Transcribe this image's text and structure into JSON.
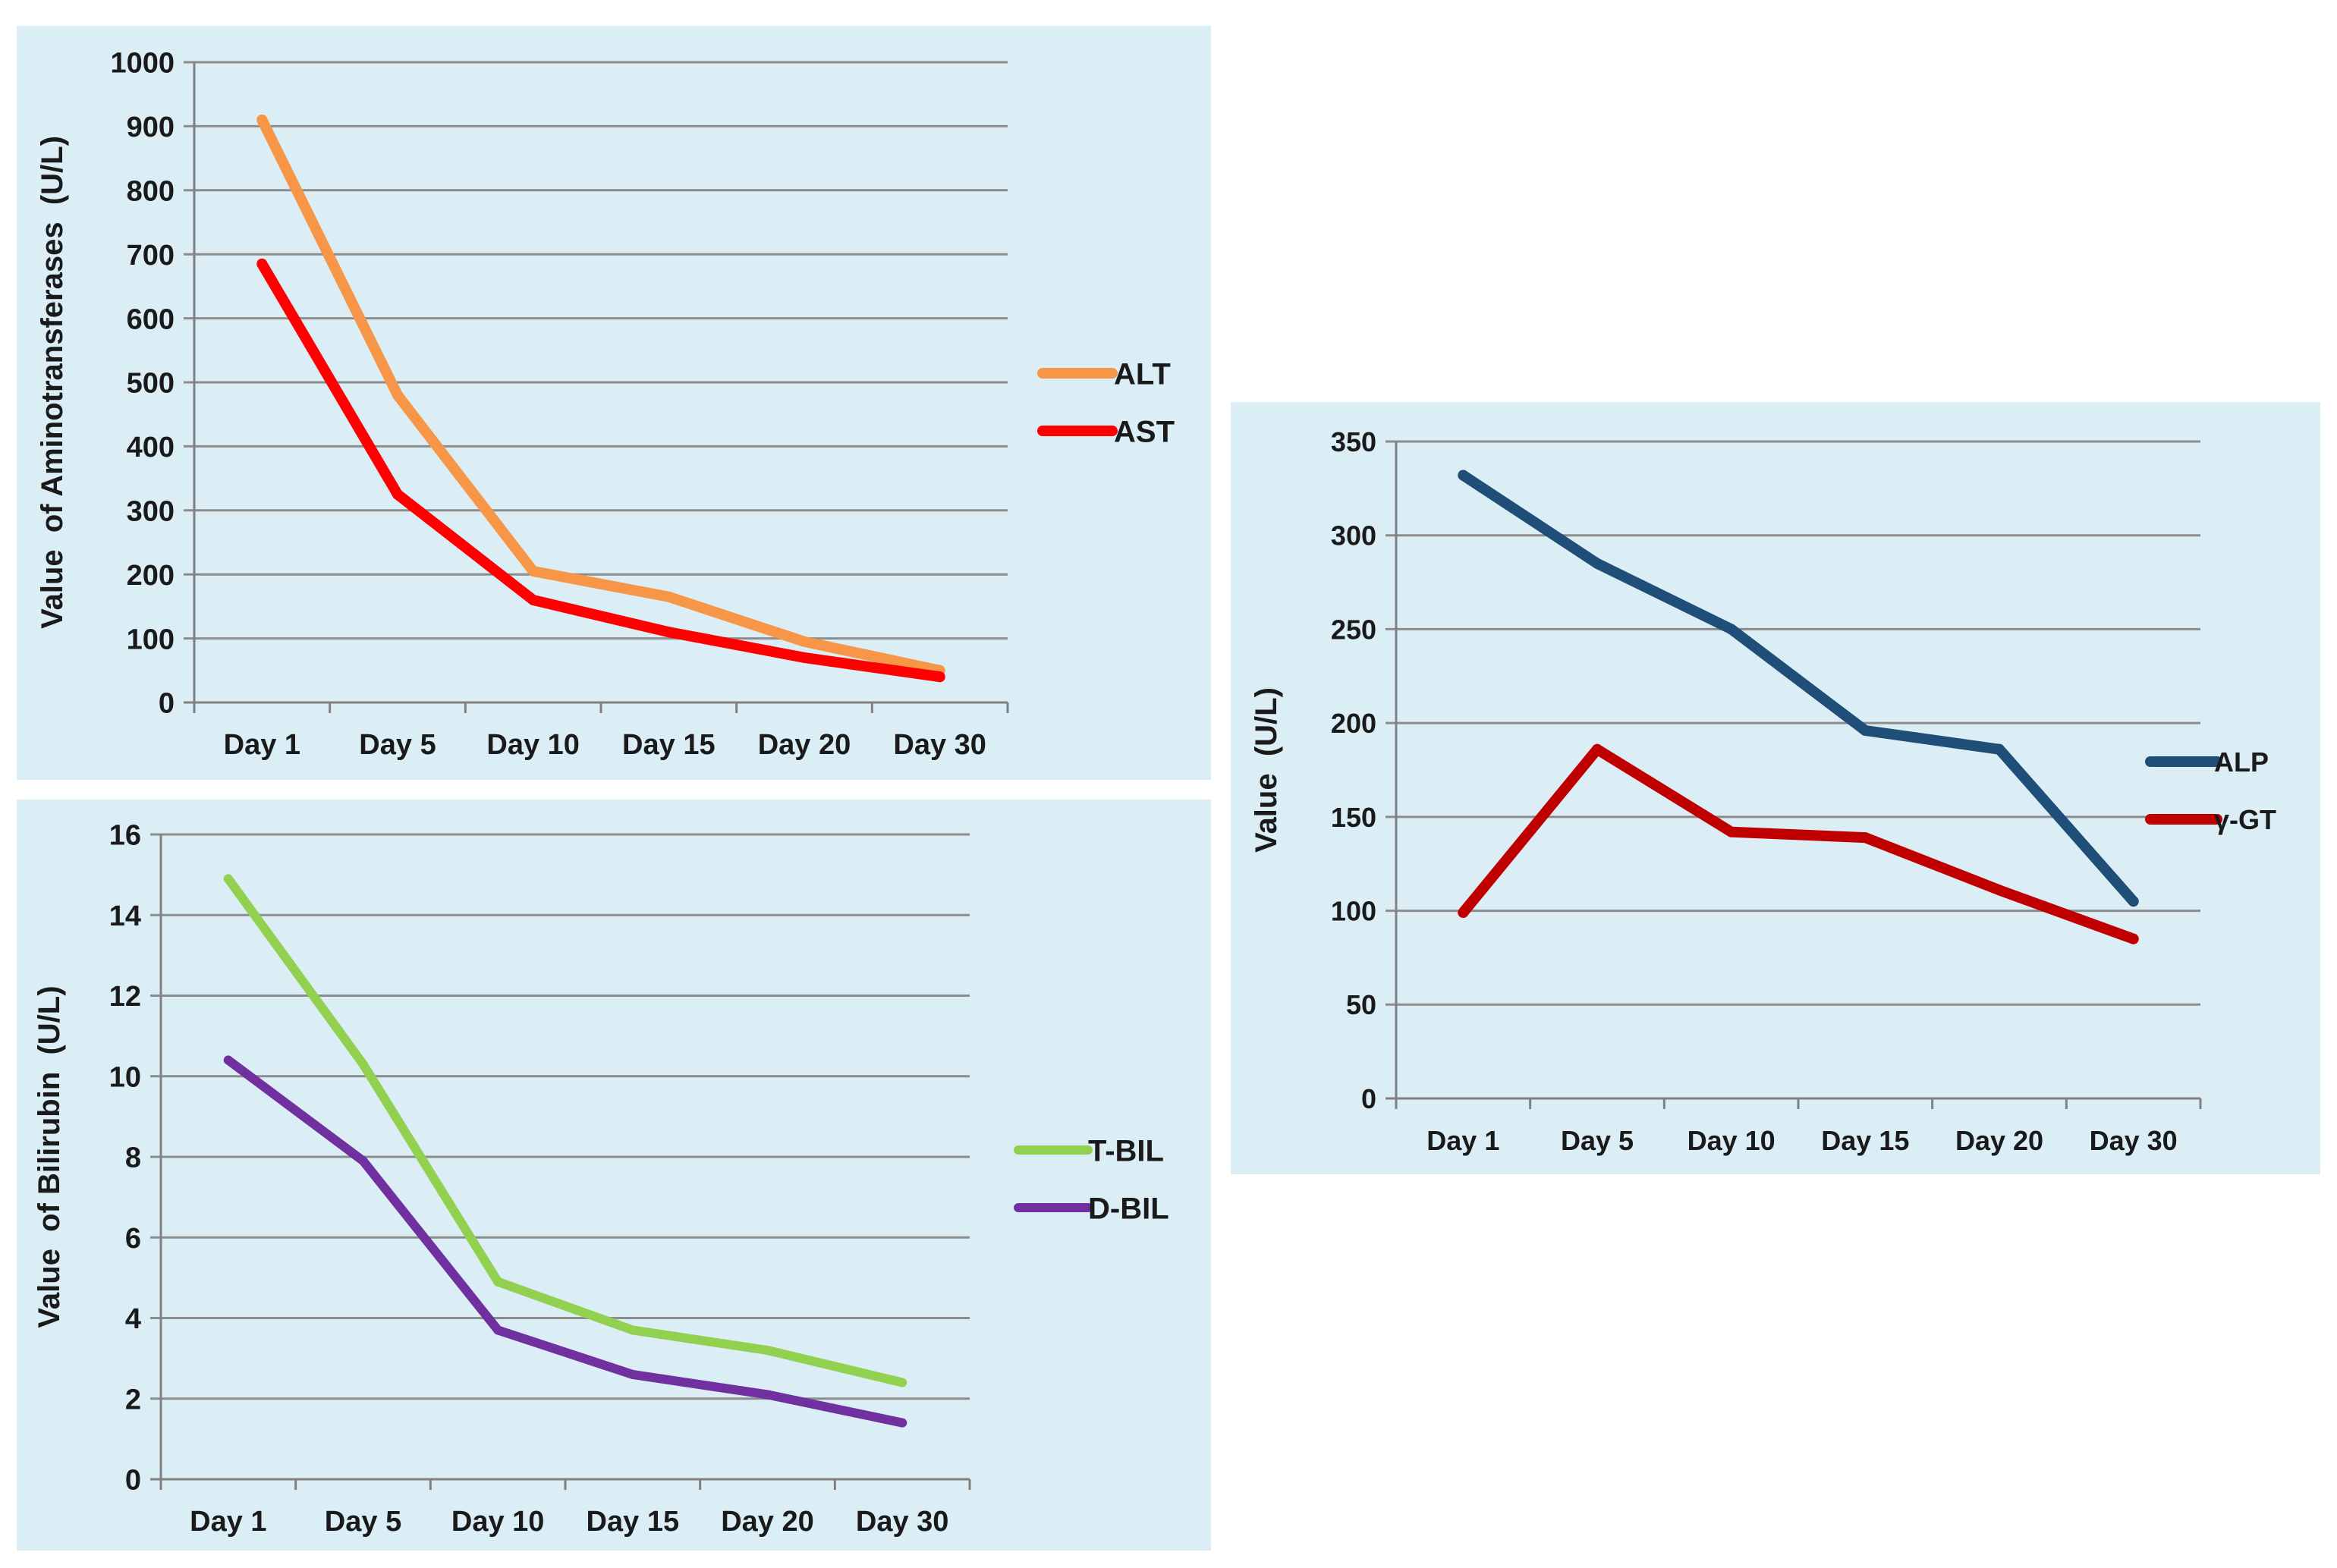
{
  "chart_data": [
    {
      "type": "line",
      "title": "",
      "xlabel": "",
      "ylabel": "Value  of Aminotransferases  (U/L)",
      "categories": [
        "Day 1",
        "Day 5",
        "Day 10",
        "Day 15",
        "Day 20",
        "Day 30"
      ],
      "ylim": [
        0,
        1000
      ],
      "yticks": [
        0,
        100,
        200,
        300,
        400,
        500,
        600,
        700,
        800,
        900,
        1000
      ],
      "grid": true,
      "legend_position": "right",
      "series": [
        {
          "name": "ALT",
          "color": "#f79646",
          "values": [
            910,
            480,
            205,
            165,
            95,
            50
          ]
        },
        {
          "name": "AST",
          "color": "#ff0000",
          "values": [
            685,
            325,
            160,
            110,
            70,
            40
          ]
        }
      ]
    },
    {
      "type": "line",
      "title": "",
      "xlabel": "",
      "ylabel": "Value  of Bilirubin  (U/L)",
      "categories": [
        "Day 1",
        "Day 5",
        "Day 10",
        "Day 15",
        "Day 20",
        "Day 30"
      ],
      "ylim": [
        0,
        16
      ],
      "yticks": [
        0,
        2,
        4,
        6,
        8,
        10,
        12,
        14,
        16
      ],
      "grid": true,
      "legend_position": "right",
      "series": [
        {
          "name": "T-BIL",
          "color": "#92d050",
          "values": [
            14.9,
            10.3,
            4.9,
            3.7,
            3.2,
            2.4
          ]
        },
        {
          "name": "D-BIL",
          "color": "#7030a0",
          "values": [
            10.4,
            7.9,
            3.7,
            2.6,
            2.1,
            1.4
          ]
        }
      ]
    },
    {
      "type": "line",
      "title": "",
      "xlabel": "",
      "ylabel": "Value  (U/L)",
      "categories": [
        "Day 1",
        "Day 5",
        "Day 10",
        "Day 15",
        "Day 20",
        "Day 30"
      ],
      "ylim": [
        0,
        350
      ],
      "yticks": [
        0,
        50,
        100,
        150,
        200,
        250,
        300,
        350
      ],
      "grid": true,
      "legend_position": "right",
      "series": [
        {
          "name": "ALP",
          "color": "#1f4e79",
          "values": [
            332,
            285,
            250,
            196,
            186,
            105
          ]
        },
        {
          "name": "γ-GT",
          "color": "#c00000",
          "values": [
            99,
            186,
            142,
            139,
            111,
            85
          ]
        }
      ]
    }
  ]
}
